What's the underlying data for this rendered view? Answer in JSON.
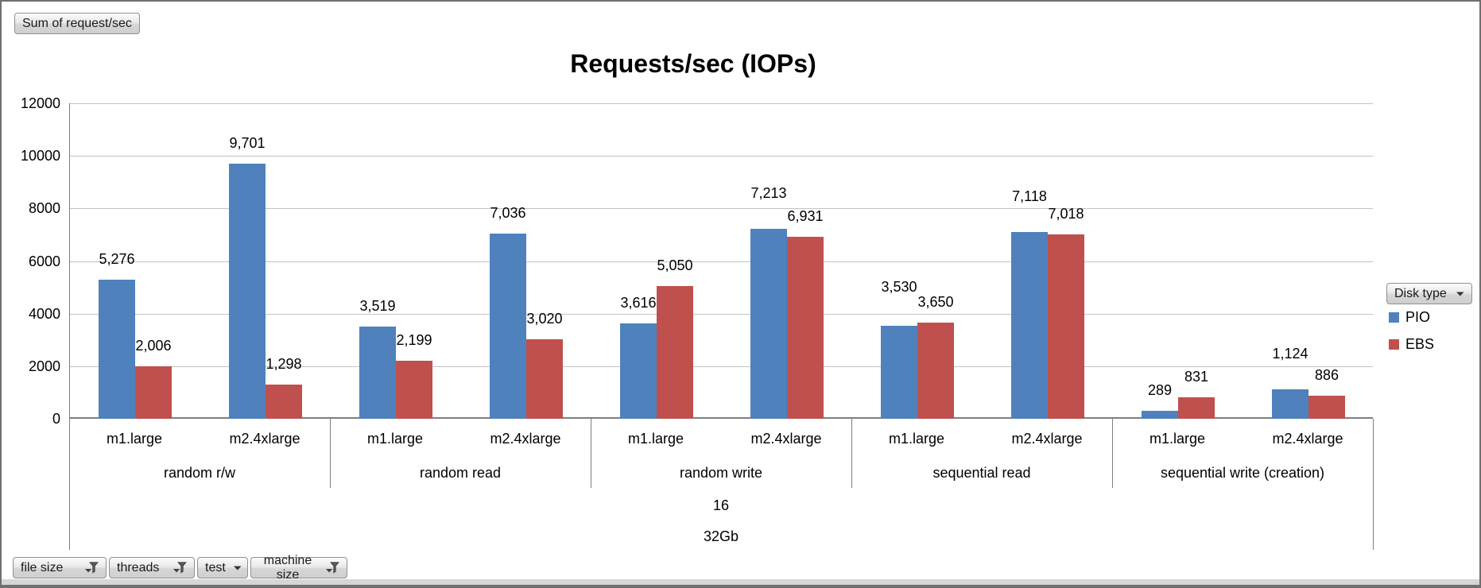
{
  "pivot_buttons": {
    "value_field": "Sum of request/sec",
    "legend_field": {
      "label": "Disk type",
      "icon": "dropdown-arrow"
    },
    "axis_fields": [
      {
        "label": "file size",
        "icon": "filter-funnel"
      },
      {
        "label": "threads",
        "icon": "filter-funnel"
      },
      {
        "label": "test",
        "icon": "dropdown-arrow"
      },
      {
        "label": "machine size",
        "icon": "filter-funnel"
      }
    ]
  },
  "chart_data": {
    "type": "bar",
    "title": "Requests/sec (IOPs)",
    "xlabel": "",
    "ylabel": "",
    "ylim": [
      0,
      12000
    ],
    "ytick_step": 2000,
    "grid": true,
    "data_labels": true,
    "legend_position": "right",
    "series": [
      {
        "name": "PIO",
        "color": "#4F81BD"
      },
      {
        "name": "EBS",
        "color": "#C0504D"
      }
    ],
    "groups": [
      {
        "test": "random r/w",
        "bars": [
          {
            "machine": "m1.large",
            "PIO": 5276,
            "EBS": 2006
          },
          {
            "machine": "m2.4xlarge",
            "PIO": 9701,
            "EBS": 1298
          }
        ]
      },
      {
        "test": "random read",
        "bars": [
          {
            "machine": "m1.large",
            "PIO": 3519,
            "EBS": 2199
          },
          {
            "machine": "m2.4xlarge",
            "PIO": 7036,
            "EBS": 3020
          }
        ]
      },
      {
        "test": "random write",
        "bars": [
          {
            "machine": "m1.large",
            "PIO": 3616,
            "EBS": 5050
          },
          {
            "machine": "m2.4xlarge",
            "PIO": 7213,
            "EBS": 6931
          }
        ]
      },
      {
        "test": "sequential read",
        "bars": [
          {
            "machine": "m1.large",
            "PIO": 3530,
            "EBS": 3650
          },
          {
            "machine": "m2.4xlarge",
            "PIO": 7118,
            "EBS": 7018
          }
        ]
      },
      {
        "test": "sequential write (creation)",
        "bars": [
          {
            "machine": "m1.large",
            "PIO": 289,
            "EBS": 831
          },
          {
            "machine": "m2.4xlarge",
            "PIO": 1124,
            "EBS": 886
          }
        ]
      }
    ],
    "outer_category_labels": [
      "16",
      "32Gb"
    ]
  }
}
